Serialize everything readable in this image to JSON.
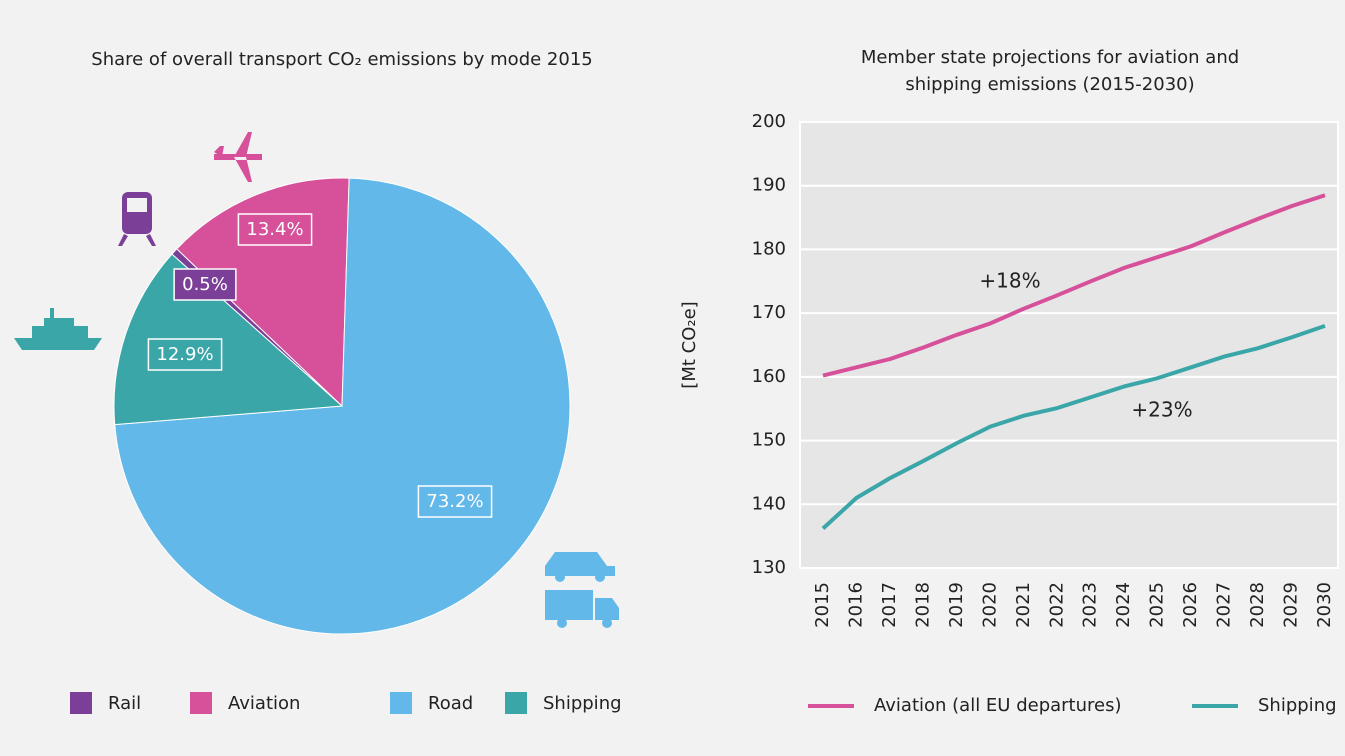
{
  "chart_data": [
    {
      "type": "pie",
      "title": "Share of overall transport CO₂ emissions by mode 2015",
      "categories": [
        "Rail",
        "Aviation",
        "Road",
        "Shipping"
      ],
      "values": [
        0.5,
        13.4,
        73.2,
        12.9
      ],
      "value_labels": [
        "0.5%",
        "13.4%",
        "73.2%",
        "12.9%"
      ],
      "colors": [
        "#7b3f98",
        "#d6509a",
        "#62b8e8",
        "#3aa6a8"
      ],
      "legend": "bottom"
    },
    {
      "type": "line",
      "title": "Member state projections for aviation and shipping emissions (2015-2030)",
      "ylabel": "[Mt CO₂e]",
      "categories": [
        "2015",
        "2016",
        "2017",
        "2018",
        "2019",
        "2020",
        "2021",
        "2022",
        "2023",
        "2024",
        "2025",
        "2026",
        "2027",
        "2028",
        "2029",
        "2030"
      ],
      "series": [
        {
          "name": "Aviation (all EU departures)",
          "color": "#d6509a",
          "values": [
            160.2,
            161.5,
            162.8,
            164.6,
            166.6,
            168.4,
            170.7,
            172.8,
            175.0,
            177.1,
            178.8,
            180.5,
            182.7,
            184.8,
            186.8,
            188.5
          ]
        },
        {
          "name": "Shipping",
          "color": "#3aa6a8",
          "values": [
            136.2,
            141.0,
            144.1,
            146.8,
            149.6,
            152.2,
            153.9,
            155.1,
            156.8,
            158.5,
            159.8,
            161.5,
            163.2,
            164.5,
            166.2,
            168.0
          ]
        }
      ],
      "annotations": [
        "+18%",
        "+23%"
      ],
      "ylim": [
        130,
        200
      ],
      "yticks": [
        130,
        140,
        150,
        160,
        170,
        180,
        190,
        200
      ],
      "grid": true,
      "legend": "bottom"
    }
  ]
}
